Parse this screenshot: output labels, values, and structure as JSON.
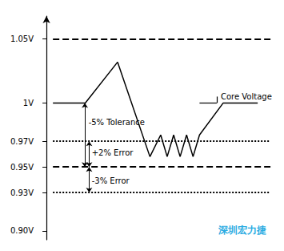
{
  "chart_data": {
    "type": "line",
    "x": [
      0.3,
      1.8,
      1.8,
      3.3,
      4.8,
      5.3,
      5.6,
      5.9,
      6.2,
      6.5,
      6.8,
      7.1,
      7.1,
      8.2,
      8.2,
      9.8
    ],
    "values": [
      1.0,
      1.0,
      1.0,
      1.032,
      0.958,
      0.975,
      0.958,
      0.975,
      0.958,
      0.975,
      0.958,
      0.975,
      0.975,
      1.0,
      1.0,
      1.0
    ],
    "color": "black",
    "xlim": [
      -0.3,
      10.5
    ],
    "ylim": [
      0.893,
      1.068
    ],
    "yticks": [
      {
        "value": 0.9,
        "label": "0.90V"
      },
      {
        "value": 0.93,
        "label": "0.93V"
      },
      {
        "value": 0.95,
        "label": "0.95V"
      },
      {
        "value": 0.97,
        "label": "0.97V"
      },
      {
        "value": 1.0,
        "label": "1V"
      },
      {
        "value": 1.05,
        "label": "1.05V"
      }
    ],
    "tick_labels": "y",
    "grid": false,
    "reference_lines": [
      {
        "y": 1.05,
        "line_style": "dashed",
        "color": "black",
        "x": [
          0.3,
          10.392
        ]
      },
      {
        "y": 0.97,
        "line_style": "dotted",
        "color": "black",
        "x": [
          0.3,
          10.392
        ]
      },
      {
        "y": 0.95,
        "line_style": "dashed",
        "color": "black",
        "x": [
          0.3,
          10.392
        ]
      },
      {
        "y": 0.93,
        "line_style": "dotted",
        "color": "black",
        "x": [
          0.3,
          10.392
        ]
      }
    ],
    "arrows": [
      {
        "x": 1.78,
        "y": [
          1.0,
          0.95
        ],
        "color": "black"
      },
      {
        "x": 1.98,
        "y": [
          0.97,
          0.95
        ],
        "color": "black"
      },
      {
        "x": 1.98,
        "y": [
          0.95,
          0.93
        ],
        "color": "black"
      }
    ],
    "annotations": [
      {
        "text": "-5% Tolerance",
        "x": 1.95,
        "y": 0.985
      },
      {
        "text": "+2% Error",
        "x": 2.1,
        "y": 0.961
      },
      {
        "text": "-3% Error",
        "x": 2.1,
        "y": 0.939
      }
    ],
    "callout": {
      "text": "Core Voltage",
      "x": 7.9,
      "y": 1.005,
      "x2": 7.1,
      "y2": 1.0
    },
    "watermark": {
      "text": "深圳宏力捷",
      "color": "#29abe2"
    }
  }
}
